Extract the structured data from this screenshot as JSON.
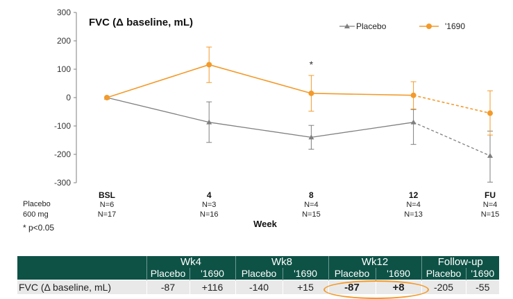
{
  "chart_data": {
    "type": "line",
    "title": "FVC (Δ baseline, mL)",
    "xlabel": "Week",
    "ylabel": "",
    "ylim": [
      -300,
      300
    ],
    "yticks": [
      "300",
      "200",
      "100",
      "0",
      "-100",
      "-200",
      "-300"
    ],
    "categories": [
      "BSL",
      "4",
      "8",
      "12",
      "FU"
    ],
    "x_positions_weeks": [
      0,
      4,
      8,
      12,
      15
    ],
    "grid": false,
    "legend_position": "top-right",
    "series": [
      {
        "name": "Placebo",
        "color": "#7f7f7f",
        "marker": "triangle",
        "values": [
          0,
          -87,
          -140,
          -87,
          -205
        ],
        "error_low": [
          0,
          -158,
          -182,
          -165,
          -298
        ],
        "error_high": [
          0,
          -15,
          -98,
          -42,
          -118
        ],
        "dashed_last_segment": true
      },
      {
        "name": "'1690",
        "color": "#f39a2a",
        "marker": "circle",
        "values": [
          0,
          116,
          15,
          8,
          -55
        ],
        "error_low": [
          0,
          53,
          -48,
          -40,
          -132
        ],
        "error_high": [
          0,
          178,
          78,
          56,
          24
        ],
        "dashed_last_segment": true
      }
    ],
    "annotations": [
      {
        "text": "*",
        "category": "8"
      }
    ],
    "row_labels": [
      "Placebo",
      "600 mg"
    ],
    "n_counts": {
      "placebo": [
        "N=6",
        "N=3",
        "N=4",
        "N=4",
        "N=4"
      ],
      "active": [
        "N=17",
        "N=16",
        "N=15",
        "N=13",
        "N=15"
      ]
    },
    "footnote": "* p<0.05"
  },
  "table": {
    "groups": [
      "Wk4",
      "Wk8",
      "Wk12",
      "Follow-up"
    ],
    "subheaders": [
      "Placebo",
      "'1690",
      "Placebo",
      "'1690",
      "Placebo",
      "'1690",
      "Placebo",
      "'1690"
    ],
    "row": {
      "label": "FVC (Δ baseline, mL)",
      "values": [
        "-87",
        "+116",
        "-140",
        "+15",
        "-87",
        "+8",
        "-205",
        "-55"
      ]
    },
    "highlight_color": "#f39a2a",
    "header_color": "#0e5246"
  }
}
